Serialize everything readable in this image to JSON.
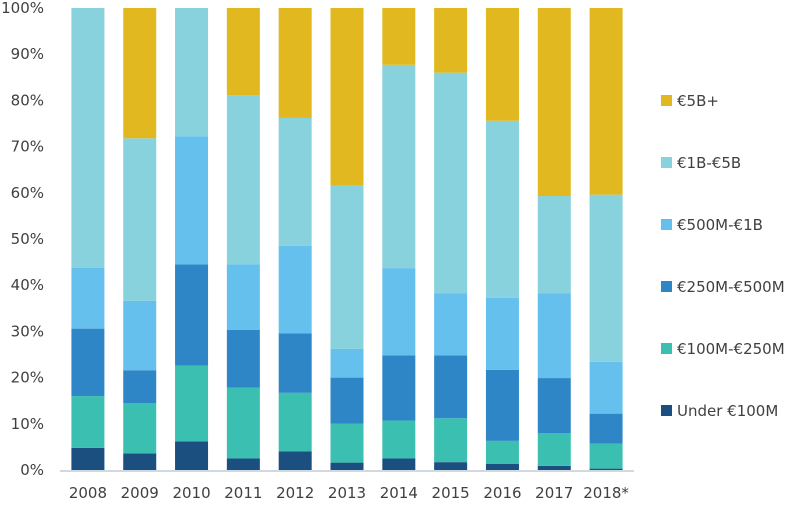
{
  "chart_data": {
    "type": "bar",
    "stacked": true,
    "title": "",
    "xlabel": "",
    "ylabel": "",
    "ylim": [
      0,
      100
    ],
    "yticks": [
      "0%",
      "10%",
      "20%",
      "30%",
      "40%",
      "50%",
      "60%",
      "70%",
      "80%",
      "90%",
      "100%"
    ],
    "grid": false,
    "legend_position": "right",
    "categories": [
      "2008",
      "2009",
      "2010",
      "2011",
      "2012",
      "2013",
      "2014",
      "2015",
      "2016",
      "2017",
      "2018*"
    ],
    "series": [
      {
        "name": "Under €100M",
        "color": "#1a4f7f",
        "values": [
          4.8,
          3.6,
          6.2,
          2.5,
          4.0,
          1.6,
          2.5,
          1.7,
          1.3,
          0.9,
          0.3
        ]
      },
      {
        "name": "€100M-€250M",
        "color": "#3bbfb0",
        "values": [
          11.2,
          10.9,
          16.4,
          15.3,
          12.7,
          8.4,
          8.2,
          9.5,
          5.0,
          7.1,
          5.4
        ]
      },
      {
        "name": "€250M-€500M",
        "color": "#2f86c6",
        "values": [
          14.6,
          7.1,
          21.9,
          12.5,
          12.9,
          10.0,
          14.1,
          13.6,
          15.4,
          11.9,
          6.5
        ]
      },
      {
        "name": "€500M-€1B",
        "color": "#66c0ee",
        "values": [
          13.2,
          15.0,
          27.7,
          14.2,
          18.9,
          6.2,
          18.9,
          13.4,
          15.6,
          18.3,
          11.2
        ]
      },
      {
        "name": "€1B-€5B",
        "color": "#87d2dc",
        "values": [
          56.2,
          35.2,
          27.8,
          36.6,
          27.7,
          35.4,
          44.0,
          47.8,
          38.3,
          21.1,
          36.2
        ]
      },
      {
        "name": "€5B+",
        "color": "#e1b820",
        "values": [
          0.0,
          28.2,
          0.0,
          18.9,
          23.8,
          38.4,
          12.3,
          14.0,
          24.4,
          40.7,
          40.4
        ]
      }
    ],
    "legend": [
      "€5B+",
      "€1B-€5B",
      "€500M-€1B",
      "€250M-€500M",
      "€100M-€250M",
      "Under €100M"
    ]
  }
}
